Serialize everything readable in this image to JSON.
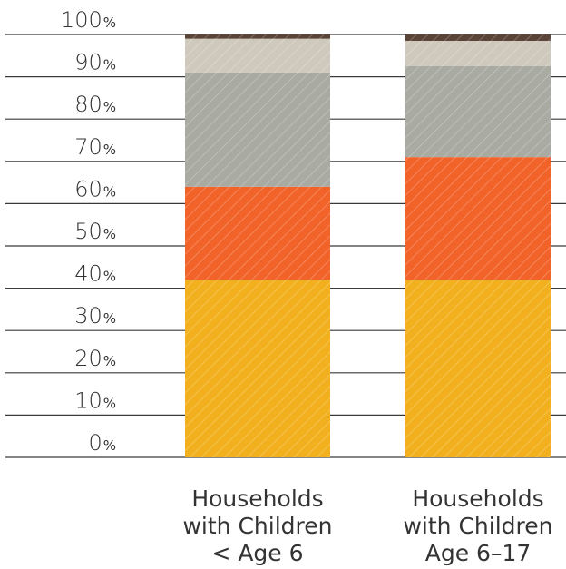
{
  "chart_data": {
    "type": "bar",
    "stacked": true,
    "title": "",
    "xlabel": "",
    "ylabel": "",
    "ylim": [
      0,
      100
    ],
    "yticks": [
      {
        "value": 0,
        "num": "0",
        "unit": "%"
      },
      {
        "value": 10,
        "num": "10",
        "unit": "%"
      },
      {
        "value": 20,
        "num": "20",
        "unit": "%"
      },
      {
        "value": 30,
        "num": "30",
        "unit": "%"
      },
      {
        "value": 40,
        "num": "40",
        "unit": "%"
      },
      {
        "value": 50,
        "num": "50",
        "unit": "%"
      },
      {
        "value": 60,
        "num": "60",
        "unit": "%"
      },
      {
        "value": 70,
        "num": "70",
        "unit": "%"
      },
      {
        "value": 80,
        "num": "80",
        "unit": "%"
      },
      {
        "value": 90,
        "num": "90",
        "unit": "%"
      },
      {
        "value": 100,
        "num": "100",
        "unit": "%"
      }
    ],
    "categories": [
      {
        "lines": [
          "Households",
          "with Children",
          "< Age 6"
        ]
      },
      {
        "lines": [
          "Households",
          "with Children",
          "Age 6–17"
        ]
      }
    ],
    "series": [
      {
        "color": "#f2b01e",
        "values": [
          42,
          42
        ]
      },
      {
        "color": "#f2632a",
        "values": [
          22,
          29
        ]
      },
      {
        "color": "#a9aba3",
        "values": [
          27,
          21.5
        ]
      },
      {
        "color": "#cfc8bc",
        "values": [
          8,
          6
        ]
      },
      {
        "color": "#5a4438",
        "values": [
          1,
          1.5
        ]
      }
    ],
    "pattern": "diagonal-hatch",
    "grid": true,
    "legend": "none"
  }
}
